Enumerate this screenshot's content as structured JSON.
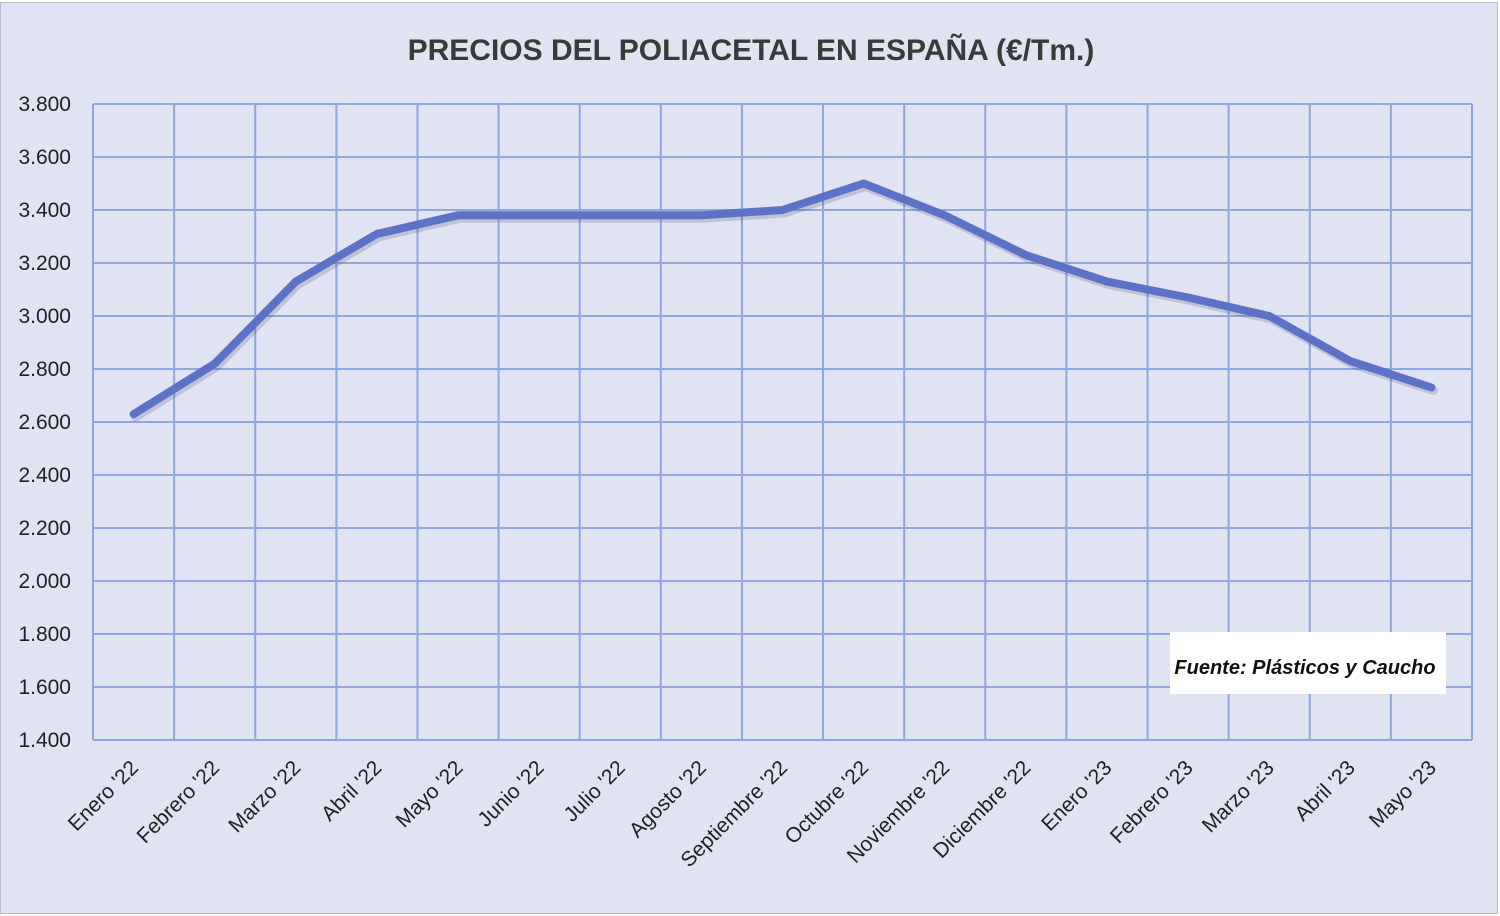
{
  "chart_data": {
    "type": "line",
    "title": "PRECIOS DEL POLIACETAL  EN ESPAÑA (€/Tm.)",
    "xlabel": "",
    "ylabel": "",
    "categories": [
      "Enero '22",
      "Febrero '22",
      "Marzo '22",
      "Abril '22",
      "Mayo '22",
      "Junio '22",
      "Julio '22",
      "Agosto '22",
      "Septiembre '22",
      "Octubre '22",
      "Noviembre '22",
      "Diciembre '22",
      "Enero '23",
      "Febrero '23",
      "Marzo '23",
      "Abril '23",
      "Mayo '23"
    ],
    "series": [
      {
        "values": [
          2630,
          2820,
          3130,
          3310,
          3380,
          3380,
          3380,
          3380,
          3400,
          3500,
          3380,
          3230,
          3130,
          3070,
          3000,
          2830,
          2730
        ]
      }
    ],
    "ylim": [
      1400,
      3800
    ],
    "yticks": [
      "1.400",
      "1.600",
      "1.800",
      "2.000",
      "2.200",
      "2.400",
      "2.600",
      "2.800",
      "3.000",
      "3.200",
      "3.400",
      "3.600",
      "3.800"
    ],
    "grid": true,
    "legend": "none",
    "source_note": "Fuente: Plásticos y Caucho",
    "colors": {
      "line": "#5b72c6",
      "grid": "#8ea7e0",
      "background": "#dfe3f2"
    }
  }
}
